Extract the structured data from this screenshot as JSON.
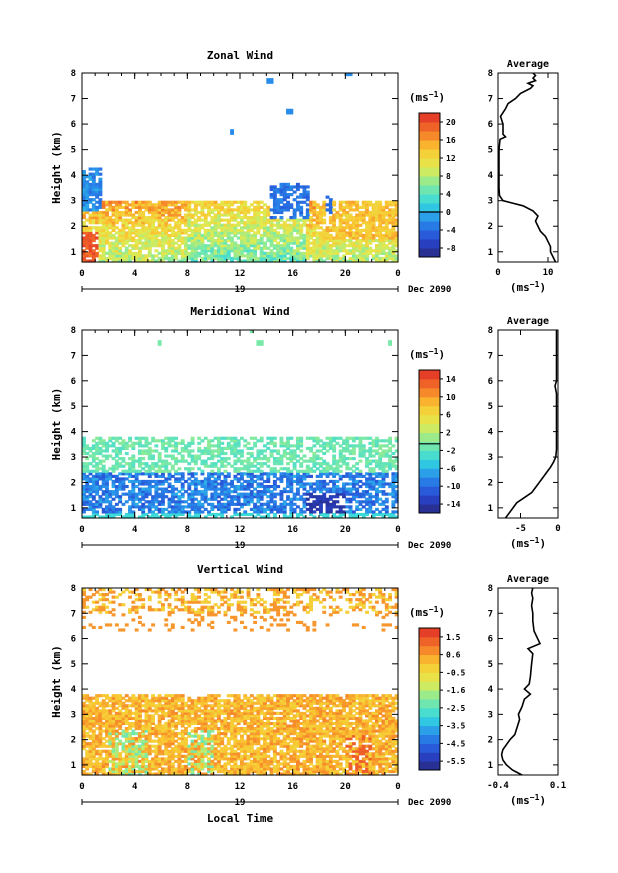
{
  "chart_data": [
    {
      "type": "heatmap",
      "title": "Zonal Wind",
      "ylabel": "Height (km)",
      "x_ticks": [
        "0",
        "4",
        "8",
        "12",
        "16",
        "20",
        "0"
      ],
      "y_ticks": [
        "1",
        "2",
        "3",
        "4",
        "5",
        "6",
        "7",
        "8"
      ],
      "x_range": [
        0,
        24
      ],
      "y_range": [
        0.6,
        8.0
      ],
      "day_label": "19",
      "month_label": "Dec 2090",
      "colorbar": {
        "unit": "(ms⁻¹)",
        "ticks": [
          "20",
          "16",
          "12",
          "8",
          "4",
          "0",
          "-4",
          "-8"
        ],
        "min": -10,
        "max": 22,
        "zero_line": 0
      },
      "average": {
        "title": "Average",
        "xlabel": "(ms⁻¹)",
        "x_ticks": [
          "0",
          "10"
        ],
        "x_range": [
          0,
          12
        ],
        "profile": [
          [
            0.6,
            11.5
          ],
          [
            0.8,
            11
          ],
          [
            1.0,
            10.5
          ],
          [
            1.2,
            10.5
          ],
          [
            1.4,
            10
          ],
          [
            1.6,
            9.5
          ],
          [
            1.8,
            8.5
          ],
          [
            2.0,
            8
          ],
          [
            2.2,
            7.5
          ],
          [
            2.4,
            8
          ],
          [
            2.6,
            7
          ],
          [
            2.8,
            5
          ],
          [
            2.9,
            3
          ],
          [
            3.0,
            1
          ],
          [
            3.2,
            0.3
          ],
          [
            3.5,
            0.2
          ],
          [
            3.8,
            0.2
          ],
          [
            4.5,
            0.2
          ],
          [
            5.0,
            0.2
          ],
          [
            5.4,
            0.4
          ],
          [
            5.5,
            1.5
          ],
          [
            5.6,
            1.0
          ],
          [
            6.0,
            1.0
          ],
          [
            6.3,
            0.5
          ],
          [
            6.6,
            1.5
          ],
          [
            6.8,
            2.0
          ],
          [
            7.0,
            3.5
          ],
          [
            7.2,
            4.5
          ],
          [
            7.4,
            6.5
          ],
          [
            7.5,
            7.0
          ],
          [
            7.6,
            6.0
          ],
          [
            7.7,
            7.5
          ],
          [
            7.8,
            7.0
          ],
          [
            7.9,
            7.5
          ],
          [
            8.0,
            7.0
          ]
        ]
      }
    },
    {
      "type": "heatmap",
      "title": "Meridional Wind",
      "ylabel": "Height (km)",
      "x_ticks": [
        "0",
        "4",
        "8",
        "12",
        "16",
        "20",
        "0"
      ],
      "y_ticks": [
        "1",
        "2",
        "3",
        "4",
        "5",
        "6",
        "7",
        "8"
      ],
      "x_range": [
        0,
        24
      ],
      "y_range": [
        0.6,
        8.0
      ],
      "day_label": "19",
      "month_label": "Dec 2090",
      "colorbar": {
        "unit": "(ms⁻¹)",
        "ticks": [
          "14",
          "10",
          "6",
          "2",
          "-2",
          "-6",
          "-10",
          "-14"
        ],
        "min": -15,
        "max": 16,
        "zero_line": 0
      },
      "average": {
        "title": "Average",
        "xlabel": "(ms⁻¹)",
        "x_ticks": [
          "-5",
          "0"
        ],
        "x_range": [
          -8,
          0
        ],
        "profile": [
          [
            0.6,
            -7
          ],
          [
            0.8,
            -6.5
          ],
          [
            1.0,
            -6
          ],
          [
            1.2,
            -5.5
          ],
          [
            1.4,
            -4.5
          ],
          [
            1.6,
            -3.5
          ],
          [
            1.8,
            -3
          ],
          [
            2.0,
            -2.5
          ],
          [
            2.2,
            -2
          ],
          [
            2.4,
            -1.5
          ],
          [
            2.6,
            -1
          ],
          [
            2.8,
            -0.6
          ],
          [
            3.0,
            -0.3
          ],
          [
            3.3,
            -0.2
          ],
          [
            3.6,
            -0.2
          ],
          [
            4.5,
            -0.2
          ],
          [
            5.5,
            -0.2
          ],
          [
            5.8,
            -0.4
          ],
          [
            6.0,
            -0.2
          ],
          [
            6.5,
            -0.2
          ],
          [
            7.0,
            -0.2
          ],
          [
            7.5,
            -0.2
          ],
          [
            8.0,
            -0.2
          ]
        ]
      }
    },
    {
      "type": "heatmap",
      "title": "Vertical Wind",
      "ylabel": "Height (km)",
      "xlabel": "Local Time",
      "x_ticks": [
        "0",
        "4",
        "8",
        "12",
        "16",
        "20",
        "0"
      ],
      "y_ticks": [
        "1",
        "2",
        "3",
        "4",
        "5",
        "6",
        "7",
        "8"
      ],
      "x_range": [
        0,
        24
      ],
      "y_range": [
        0.6,
        8.0
      ],
      "day_label": "19",
      "month_label": "Dec 2090",
      "colorbar": {
        "unit": "(ms⁻¹)",
        "ticks": [
          "1.5",
          "0.6",
          "-0.5",
          "-1.6",
          "-2.5",
          "-3.5",
          "-4.5",
          "-5.5"
        ],
        "min": -6,
        "max": 2,
        "zero_line": null
      },
      "average": {
        "title": "Average",
        "xlabel": "(ms⁻¹)",
        "x_ticks": [
          "-0.4",
          "0.1"
        ],
        "x_range": [
          -0.4,
          0.1
        ],
        "profile": [
          [
            0.6,
            -0.2
          ],
          [
            0.8,
            -0.28
          ],
          [
            1.0,
            -0.33
          ],
          [
            1.2,
            -0.36
          ],
          [
            1.4,
            -0.37
          ],
          [
            1.6,
            -0.36
          ],
          [
            1.8,
            -0.33
          ],
          [
            2.0,
            -0.3
          ],
          [
            2.2,
            -0.26
          ],
          [
            2.5,
            -0.24
          ],
          [
            2.8,
            -0.22
          ],
          [
            3.0,
            -0.23
          ],
          [
            3.3,
            -0.2
          ],
          [
            3.6,
            -0.18
          ],
          [
            3.8,
            -0.13
          ],
          [
            4.0,
            -0.18
          ],
          [
            4.2,
            -0.14
          ],
          [
            4.5,
            -0.13
          ],
          [
            5.0,
            -0.12
          ],
          [
            5.4,
            -0.11
          ],
          [
            5.6,
            -0.15
          ],
          [
            5.8,
            -0.05
          ],
          [
            6.0,
            -0.07
          ],
          [
            6.3,
            -0.1
          ],
          [
            6.7,
            -0.11
          ],
          [
            7.0,
            -0.11
          ],
          [
            7.3,
            -0.12
          ],
          [
            7.6,
            -0.11
          ],
          [
            7.8,
            -0.12
          ],
          [
            8.0,
            -0.11
          ]
        ]
      }
    }
  ]
}
